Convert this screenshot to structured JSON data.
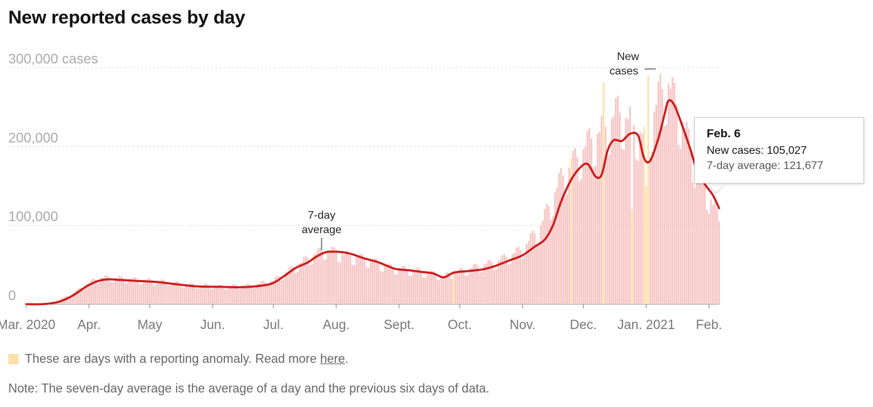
{
  "title": "New reported cases by day",
  "tooltip": {
    "date": "Feb. 6",
    "new_cases": "New cases: 105,027",
    "average": "7-day average: 121,677"
  },
  "legend": {
    "text": "These are days with a reporting anomaly. Read more ",
    "link": "here",
    "end": ".",
    "swatch_color": "#fde0a8"
  },
  "note": "Note: The seven-day average is the average of a day and the previous six days of data.",
  "annotations": {
    "avg_line1": "7-day",
    "avg_line2": "average",
    "cases_line1": "New",
    "cases_line2": "cases"
  },
  "colors": {
    "bar": "#f7c4c4",
    "anomaly": "#fde0a8",
    "average_line": "#cc1a1a",
    "grid": "#dddddd"
  },
  "chart_data": {
    "type": "bar",
    "x_start": "2020-03-01",
    "x_end": "2021-02-06",
    "ylim": [
      0,
      300000
    ],
    "y_ticks": [
      {
        "value": 0,
        "label": "0"
      },
      {
        "value": 100000,
        "label": "100,000"
      },
      {
        "value": 200000,
        "label": "200,000"
      },
      {
        "value": 300000,
        "label": "300,000 cases"
      }
    ],
    "x_ticks": [
      {
        "date": "2020-03-01",
        "label": "Mar. 2020"
      },
      {
        "date": "2020-04-01",
        "label": "Apr."
      },
      {
        "date": "2020-05-01",
        "label": "May"
      },
      {
        "date": "2020-06-01",
        "label": "Jun."
      },
      {
        "date": "2020-07-01",
        "label": "Jul."
      },
      {
        "date": "2020-08-01",
        "label": "Aug."
      },
      {
        "date": "2020-09-01",
        "label": "Sept."
      },
      {
        "date": "2020-10-01",
        "label": "Oct."
      },
      {
        "date": "2020-11-01",
        "label": "Nov."
      },
      {
        "date": "2020-12-01",
        "label": "Dec."
      },
      {
        "date": "2021-01-01",
        "label": "Jan. 2021"
      },
      {
        "date": "2021-02-01",
        "label": "Feb."
      }
    ],
    "seven_day_average": [
      {
        "date": "2020-03-01",
        "value": 0
      },
      {
        "date": "2020-03-10",
        "value": 200
      },
      {
        "date": "2020-03-17",
        "value": 3000
      },
      {
        "date": "2020-03-24",
        "value": 11000
      },
      {
        "date": "2020-03-31",
        "value": 23000
      },
      {
        "date": "2020-04-05",
        "value": 29000
      },
      {
        "date": "2020-04-10",
        "value": 31500
      },
      {
        "date": "2020-04-15",
        "value": 31000
      },
      {
        "date": "2020-04-25",
        "value": 29500
      },
      {
        "date": "2020-05-05",
        "value": 28000
      },
      {
        "date": "2020-05-15",
        "value": 25000
      },
      {
        "date": "2020-05-25",
        "value": 22500
      },
      {
        "date": "2020-06-05",
        "value": 22000
      },
      {
        "date": "2020-06-15",
        "value": 21500
      },
      {
        "date": "2020-06-25",
        "value": 23500
      },
      {
        "date": "2020-07-01",
        "value": 27000
      },
      {
        "date": "2020-07-07",
        "value": 37000
      },
      {
        "date": "2020-07-12",
        "value": 46000
      },
      {
        "date": "2020-07-18",
        "value": 53000
      },
      {
        "date": "2020-07-22",
        "value": 60000
      },
      {
        "date": "2020-07-27",
        "value": 66000
      },
      {
        "date": "2020-08-02",
        "value": 66500
      },
      {
        "date": "2020-08-08",
        "value": 64000
      },
      {
        "date": "2020-08-15",
        "value": 58000
      },
      {
        "date": "2020-08-22",
        "value": 53000
      },
      {
        "date": "2020-08-30",
        "value": 45000
      },
      {
        "date": "2020-09-06",
        "value": 43000
      },
      {
        "date": "2020-09-12",
        "value": 41000
      },
      {
        "date": "2020-09-18",
        "value": 39000
      },
      {
        "date": "2020-09-23",
        "value": 34000
      },
      {
        "date": "2020-09-28",
        "value": 40000
      },
      {
        "date": "2020-10-05",
        "value": 42000
      },
      {
        "date": "2020-10-12",
        "value": 44000
      },
      {
        "date": "2020-10-18",
        "value": 48000
      },
      {
        "date": "2020-10-25",
        "value": 55000
      },
      {
        "date": "2020-11-01",
        "value": 62000
      },
      {
        "date": "2020-11-07",
        "value": 73000
      },
      {
        "date": "2020-11-12",
        "value": 82000
      },
      {
        "date": "2020-11-16",
        "value": 100000
      },
      {
        "date": "2020-11-20",
        "value": 130000
      },
      {
        "date": "2020-11-25",
        "value": 158000
      },
      {
        "date": "2020-11-29",
        "value": 172000
      },
      {
        "date": "2020-12-03",
        "value": 178000
      },
      {
        "date": "2020-12-07",
        "value": 162000
      },
      {
        "date": "2020-12-10",
        "value": 164000
      },
      {
        "date": "2020-12-13",
        "value": 195000
      },
      {
        "date": "2020-12-16",
        "value": 208000
      },
      {
        "date": "2020-12-20",
        "value": 207000
      },
      {
        "date": "2020-12-24",
        "value": 216000
      },
      {
        "date": "2020-12-28",
        "value": 214000
      },
      {
        "date": "2020-12-31",
        "value": 185000
      },
      {
        "date": "2021-01-03",
        "value": 182000
      },
      {
        "date": "2021-01-07",
        "value": 210000
      },
      {
        "date": "2021-01-10",
        "value": 240000
      },
      {
        "date": "2021-01-12",
        "value": 258000
      },
      {
        "date": "2021-01-15",
        "value": 252000
      },
      {
        "date": "2021-01-19",
        "value": 225000
      },
      {
        "date": "2021-01-23",
        "value": 195000
      },
      {
        "date": "2021-01-26",
        "value": 170000
      },
      {
        "date": "2021-01-30",
        "value": 152000
      },
      {
        "date": "2021-02-03",
        "value": 138000
      },
      {
        "date": "2021-02-06",
        "value": 121677
      }
    ],
    "daily_envelope": [
      {
        "date": "2020-03-01",
        "value": 200
      },
      {
        "date": "2020-03-10",
        "value": 800
      },
      {
        "date": "2020-03-17",
        "value": 5000
      },
      {
        "date": "2020-03-24",
        "value": 14000
      },
      {
        "date": "2020-04-01",
        "value": 27000
      },
      {
        "date": "2020-04-05",
        "value": 33000
      },
      {
        "date": "2020-04-12",
        "value": 34000
      },
      {
        "date": "2020-04-25",
        "value": 31000
      },
      {
        "date": "2020-05-05",
        "value": 30000
      },
      {
        "date": "2020-05-20",
        "value": 25000
      },
      {
        "date": "2020-06-05",
        "value": 23000
      },
      {
        "date": "2020-06-20",
        "value": 24000
      },
      {
        "date": "2020-07-01",
        "value": 30000
      },
      {
        "date": "2020-07-10",
        "value": 45000
      },
      {
        "date": "2020-07-20",
        "value": 62000
      },
      {
        "date": "2020-07-27",
        "value": 70000
      },
      {
        "date": "2020-08-05",
        "value": 63000
      },
      {
        "date": "2020-08-15",
        "value": 58000
      },
      {
        "date": "2020-08-28",
        "value": 47000
      },
      {
        "date": "2020-09-10",
        "value": 43000
      },
      {
        "date": "2020-09-23",
        "value": 36000
      },
      {
        "date": "2020-10-05",
        "value": 45000
      },
      {
        "date": "2020-10-20",
        "value": 55000
      },
      {
        "date": "2020-11-01",
        "value": 70000
      },
      {
        "date": "2020-11-10",
        "value": 100000
      },
      {
        "date": "2020-11-20",
        "value": 160000
      },
      {
        "date": "2020-11-29",
        "value": 190000
      },
      {
        "date": "2020-12-05",
        "value": 210000
      },
      {
        "date": "2020-12-12",
        "value": 225000
      },
      {
        "date": "2020-12-18",
        "value": 245000
      },
      {
        "date": "2020-12-25",
        "value": 230000
      },
      {
        "date": "2021-01-01",
        "value": 210000
      },
      {
        "date": "2021-01-08",
        "value": 270000
      },
      {
        "date": "2021-01-12",
        "value": 280000
      },
      {
        "date": "2021-01-18",
        "value": 240000
      },
      {
        "date": "2021-01-25",
        "value": 180000
      },
      {
        "date": "2021-02-01",
        "value": 140000
      },
      {
        "date": "2021-02-06",
        "value": 105027
      }
    ],
    "anomaly_days": [
      {
        "date": "2020-09-28",
        "value": 42000
      },
      {
        "date": "2020-11-25",
        "value": 185000
      },
      {
        "date": "2020-12-11",
        "value": 281000
      },
      {
        "date": "2020-12-25",
        "value": 120000
      },
      {
        "date": "2020-12-31",
        "value": 225000
      },
      {
        "date": "2021-01-01",
        "value": 150000
      },
      {
        "date": "2021-01-02",
        "value": 290000
      }
    ]
  }
}
